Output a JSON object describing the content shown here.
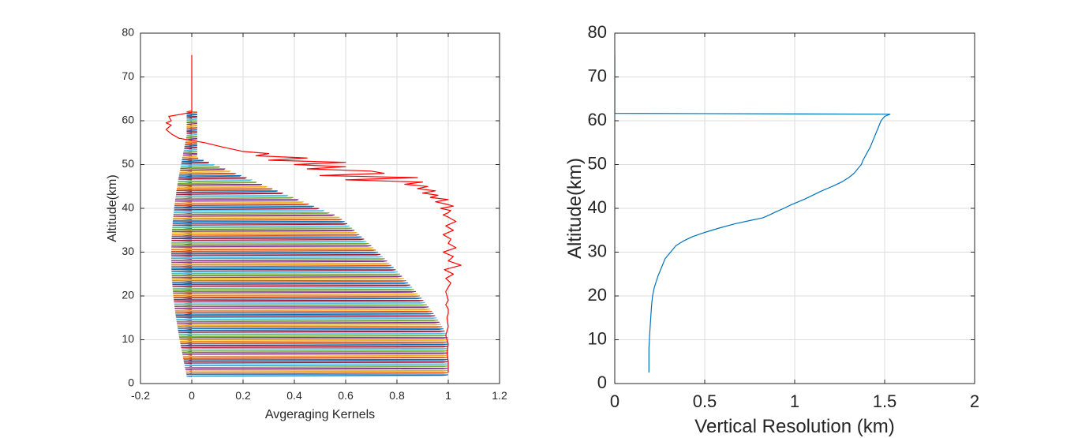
{
  "chart_data": [
    {
      "type": "line",
      "xlabel": "Avgeraging Kernels",
      "ylabel": "Altitude(km)",
      "xlim": [
        -0.2,
        1.2
      ],
      "ylim": [
        0,
        80
      ],
      "xticks": [
        "-0.2",
        "0",
        "0.2",
        "0.4",
        "0.6",
        "0.8",
        "1",
        "1.2"
      ],
      "yticks": [
        "0",
        "10",
        "20",
        "30",
        "40",
        "50",
        "60",
        "70",
        "80"
      ],
      "grid": true,
      "kernels": {
        "description_of_series": "many per-level averaging kernel curves",
        "altitude_levels_km": [
          2,
          62
        ],
        "level_step_km": 0.5,
        "colors": [
          "#0072BD",
          "#D95319",
          "#EDB120",
          "#7E2F8E",
          "#77AC30",
          "#4DBEEE",
          "#A2142F"
        ]
      },
      "series": [
        {
          "color": "#ff0000",
          "x": [
            1.0,
            1.0,
            0.995,
            1.0,
            0.99,
            1.0,
            0.995,
            1.0,
            1.0,
            0.99,
            1.0,
            0.995,
            0.99,
            1.0,
            1.01,
            0.99,
            1.02,
            0.985,
            1.05,
            1.0,
            1.02,
            0.98,
            1.03,
            1.0,
            1.01,
            0.98,
            1.02,
            0.99,
            1.03,
            1.0,
            0.98,
            1.0,
            1.01,
            0.97,
            1.02,
            0.99,
            0.95,
            1.0,
            0.93,
            0.96,
            0.9,
            0.95,
            0.88,
            0.92,
            0.83,
            0.9,
            0.6,
            0.88,
            0.5,
            0.75,
            0.7,
            0.45,
            0.6,
            0.4,
            0.6,
            0.3,
            0.45,
            0.25,
            0.3,
            0.2,
            0.12,
            0.05,
            -0.05,
            -0.08,
            -0.1,
            -0.08,
            -0.1,
            -0.08,
            -0.09,
            -0.04,
            0.0,
            0.0
          ],
          "y": [
            2.5,
            5,
            7,
            9,
            11,
            13,
            15,
            16,
            17,
            18,
            19,
            20,
            21,
            22,
            23,
            24,
            25,
            26,
            27,
            28,
            29,
            30,
            31,
            32,
            33,
            34,
            35,
            36,
            37,
            38,
            38.5,
            39,
            39.5,
            40,
            40.5,
            41,
            41.5,
            42,
            42.5,
            43,
            43.5,
            44,
            44.5,
            45,
            45.5,
            46,
            46.5,
            47,
            47.5,
            48,
            48.5,
            49,
            49.5,
            50,
            50.5,
            51,
            51.5,
            52,
            52.5,
            53,
            54,
            55,
            56,
            57,
            58,
            59,
            59.5,
            60,
            61,
            61.5,
            62,
            75
          ]
        }
      ]
    },
    {
      "type": "line",
      "xlabel": "Vertical Resolution (km)",
      "ylabel": "Altitude(km)",
      "xlim": [
        0,
        2
      ],
      "ylim": [
        0,
        80
      ],
      "xticks": [
        "0",
        "0.5",
        "1",
        "1.5",
        "2"
      ],
      "yticks": [
        "0",
        "10",
        "20",
        "30",
        "40",
        "50",
        "60",
        "70",
        "80"
      ],
      "grid": true,
      "series": [
        {
          "color": "#0072BD",
          "x": [
            0.19,
            0.19,
            0.195,
            0.2,
            0.205,
            0.21,
            0.22,
            0.24,
            0.26,
            0.28,
            0.31,
            0.34,
            0.38,
            0.43,
            0.5,
            0.58,
            0.67,
            0.76,
            0.82,
            0.86,
            0.9,
            0.94,
            0.98,
            1.02,
            1.06,
            1.1,
            1.14,
            1.18,
            1.22,
            1.26,
            1.3,
            1.33,
            1.35,
            1.37,
            1.38,
            1.4,
            1.42,
            1.44,
            1.46,
            1.48,
            1.5,
            1.53,
            0.0,
            0.0
          ],
          "y": [
            2.5,
            8,
            12,
            15,
            18,
            20,
            22,
            24.5,
            26.5,
            28.5,
            30,
            31.5,
            32.5,
            33.5,
            34.5,
            35.5,
            36.5,
            37.3,
            37.8,
            38.5,
            39.3,
            40,
            40.8,
            41.5,
            42.2,
            43,
            43.8,
            44.5,
            45.2,
            46,
            47,
            48,
            49,
            50,
            51,
            52.5,
            54,
            56,
            58,
            60,
            61,
            61.5,
            61.7,
            75
          ]
        }
      ]
    }
  ]
}
